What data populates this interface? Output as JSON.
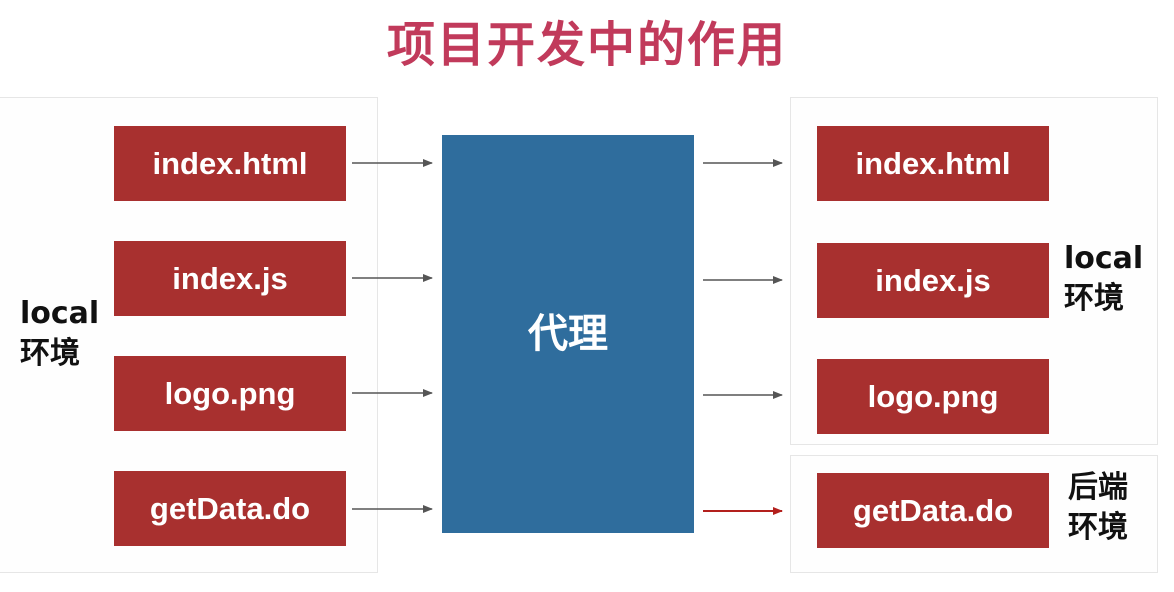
{
  "title": "项目开发中的作用",
  "proxy_label": "代理",
  "left_boxes": [
    "index.html",
    "index.js",
    "logo.png",
    "getData.do"
  ],
  "right_boxes": [
    "index.html",
    "index.js",
    "logo.png",
    "getData.do"
  ],
  "left_env": {
    "line1": "local",
    "line2": "环境"
  },
  "right_env_local": {
    "line1": "local",
    "line2": "环境"
  },
  "right_env_backend": {
    "line1": "后端",
    "line2": "环境"
  },
  "colors": {
    "title": "#c13a5b",
    "box": "#a8302f",
    "proxy": "#2f6d9d",
    "arrow": "#555555",
    "arrow_highlight": "#b3201d"
  }
}
